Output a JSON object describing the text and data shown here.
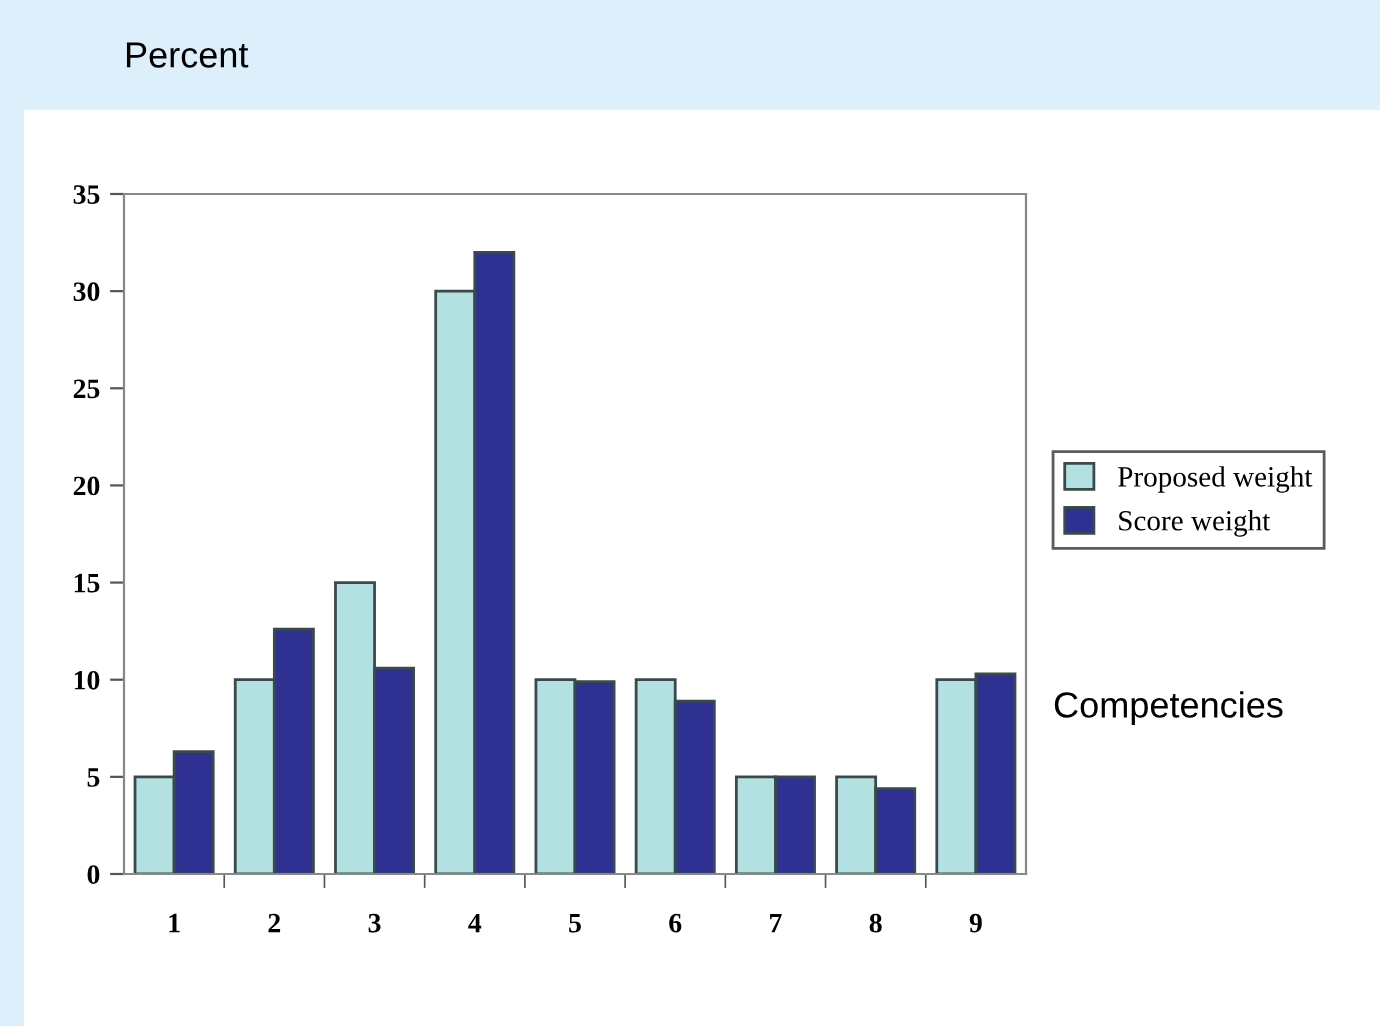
{
  "chart_data": {
    "type": "bar",
    "ylabel": "Percent",
    "xlabel": "Competencies",
    "categories": [
      "1",
      "2",
      "3",
      "4",
      "5",
      "6",
      "7",
      "8",
      "9"
    ],
    "series": [
      {
        "name": "Proposed weight",
        "color": "#b3e0e0",
        "values": [
          5,
          10,
          15,
          30,
          10,
          10,
          5,
          5,
          10
        ]
      },
      {
        "name": "Score weight",
        "color": "#2e3192",
        "values": [
          6.3,
          12.6,
          10.6,
          32,
          9.9,
          8.9,
          5.0,
          4.4,
          10.3
        ]
      }
    ],
    "ylim": [
      0,
      35
    ],
    "yticks": [
      0,
      5,
      10,
      15,
      20,
      25,
      30,
      35
    ],
    "grid": false,
    "legend": "right"
  }
}
